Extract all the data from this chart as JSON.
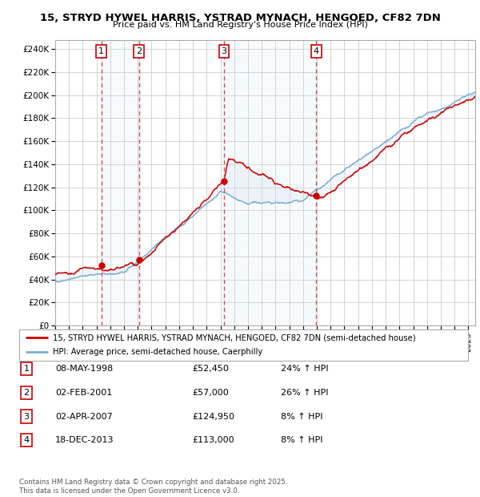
{
  "title": "15, STRYD HYWEL HARRIS, YSTRAD MYNACH, HENGOED, CF82 7DN",
  "subtitle": "Price paid vs. HM Land Registry's House Price Index (HPI)",
  "ylabel_ticks": [
    "£0",
    "£20K",
    "£40K",
    "£60K",
    "£80K",
    "£100K",
    "£120K",
    "£140K",
    "£160K",
    "£180K",
    "£200K",
    "£220K",
    "£240K"
  ],
  "ylim": [
    0,
    248000
  ],
  "xlim_start": 1995.0,
  "xlim_end": 2025.5,
  "sale_dates_num": [
    1998.352,
    2001.085,
    2007.25,
    2013.962
  ],
  "sale_prices": [
    52450,
    57000,
    124950,
    113000
  ],
  "sale_labels": [
    "1",
    "2",
    "3",
    "4"
  ],
  "legend_line1": "15, STRYD HYWEL HARRIS, YSTRAD MYNACH, HENGOED, CF82 7DN (semi-detached house)",
  "legend_line2": "HPI: Average price, semi-detached house, Caerphilly",
  "table_rows": [
    {
      "num": "1",
      "date": "08-MAY-1998",
      "price": "£52,450",
      "hpi": "24% ↑ HPI"
    },
    {
      "num": "2",
      "date": "02-FEB-2001",
      "price": "£57,000",
      "hpi": "26% ↑ HPI"
    },
    {
      "num": "3",
      "date": "02-APR-2007",
      "price": "£124,950",
      "hpi": "8% ↑ HPI"
    },
    {
      "num": "4",
      "date": "18-DEC-2013",
      "price": "£113,000",
      "hpi": "8% ↑ HPI"
    }
  ],
  "footer": "Contains HM Land Registry data © Crown copyright and database right 2025.\nThis data is licensed under the Open Government Licence v3.0.",
  "line_color_red": "#cc0000",
  "line_color_blue": "#7dadd4",
  "background_color": "#ffffff",
  "plot_bg_color": "#ffffff",
  "grid_color": "#cccccc",
  "shade_color": "#cce0f0",
  "dashed_line_color": "#dd4444"
}
